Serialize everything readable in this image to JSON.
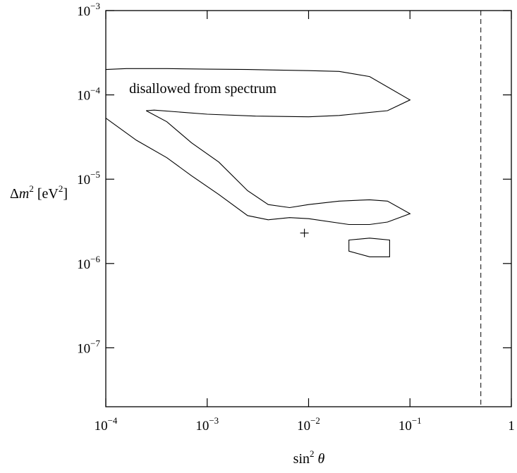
{
  "chart_data": {
    "type": "line",
    "title": "",
    "xlabel": {
      "prefix": "sin",
      "sup": "2",
      "var": "θ"
    },
    "ylabel": {
      "prefix": "Δ",
      "var": "m",
      "sup": "2",
      "unit_open": "[eV",
      "unit_sup": "2",
      "unit_close": "]"
    },
    "x_scale": "log",
    "y_scale": "log",
    "xlim": [
      0.0001,
      1
    ],
    "ylim": [
      2e-08,
      0.001
    ],
    "grid": false,
    "legend": "none",
    "x_ticks": [
      {
        "value": 0.0001,
        "base": "10",
        "exp": "−4"
      },
      {
        "value": 0.001,
        "base": "10",
        "exp": "−3"
      },
      {
        "value": 0.01,
        "base": "10",
        "exp": "−2"
      },
      {
        "value": 0.1,
        "base": "10",
        "exp": "−1"
      },
      {
        "value": 1,
        "base": "1",
        "exp": ""
      }
    ],
    "y_ticks": [
      {
        "value": 0.001,
        "base": "10",
        "exp": "−3"
      },
      {
        "value": 0.0001,
        "base": "10",
        "exp": "−4"
      },
      {
        "value": 1e-05,
        "base": "10",
        "exp": "−5"
      },
      {
        "value": 1e-06,
        "base": "10",
        "exp": "−6"
      },
      {
        "value": 1e-07,
        "base": "10",
        "exp": "−7"
      }
    ],
    "annotations": [
      {
        "text": "disallowed from spectrum",
        "x": 0.00017,
        "y": 0.000105
      }
    ],
    "marker": {
      "symbol": "+",
      "x": 0.0091,
      "y": 2.3e-06
    },
    "reference_line": {
      "style": "dashed",
      "x": 0.5
    },
    "series": [
      {
        "points": [
          [
            0.0001,
            0.0002
          ],
          [
            0.00016,
            0.000205
          ],
          [
            0.0004,
            0.000205
          ],
          [
            0.001,
            0.000202
          ],
          [
            0.0025,
            0.0002
          ],
          [
            0.01,
            0.000194
          ],
          [
            0.02,
            0.00019
          ],
          [
            0.04,
            0.000165
          ],
          [
            0.1,
            8.7e-05
          ],
          [
            0.06,
            6.5e-05
          ],
          [
            0.02,
            5.7e-05
          ],
          [
            0.01,
            5.5e-05
          ],
          [
            0.003,
            5.6e-05
          ],
          [
            0.001,
            5.9e-05
          ],
          [
            0.0003,
            6.6e-05
          ],
          [
            0.00025,
            6.5e-05
          ]
        ],
        "closed": false
      },
      {
        "points": [
          [
            0.00025,
            6.5e-05
          ],
          [
            0.0004,
            4.8e-05
          ],
          [
            0.0007,
            2.7e-05
          ],
          [
            0.0013,
            1.6e-05
          ],
          [
            0.0025,
            7.3e-06
          ],
          [
            0.004,
            5e-06
          ],
          [
            0.0065,
            4.6e-06
          ],
          [
            0.01,
            5e-06
          ],
          [
            0.02,
            5.5e-06
          ],
          [
            0.04,
            5.7e-06
          ],
          [
            0.06,
            5.5e-06
          ],
          [
            0.1,
            3.9e-06
          ],
          [
            0.06,
            3.1e-06
          ],
          [
            0.04,
            2.9e-06
          ],
          [
            0.025,
            2.9e-06
          ],
          [
            0.01,
            3.4e-06
          ],
          [
            0.0065,
            3.5e-06
          ],
          [
            0.004,
            3.3e-06
          ],
          [
            0.0025,
            3.7e-06
          ],
          [
            0.0013,
            6.6e-06
          ],
          [
            0.0007,
            1.1e-05
          ],
          [
            0.0004,
            1.8e-05
          ],
          [
            0.0002,
            2.9e-05
          ],
          [
            0.0001,
            5.3e-05
          ]
        ],
        "closed": false
      },
      {
        "points": [
          [
            0.025,
            1.9e-06
          ],
          [
            0.04,
            2e-06
          ],
          [
            0.063,
            1.9e-06
          ],
          [
            0.063,
            1.2e-06
          ],
          [
            0.04,
            1.2e-06
          ],
          [
            0.025,
            1.4e-06
          ]
        ],
        "closed": true
      }
    ]
  }
}
